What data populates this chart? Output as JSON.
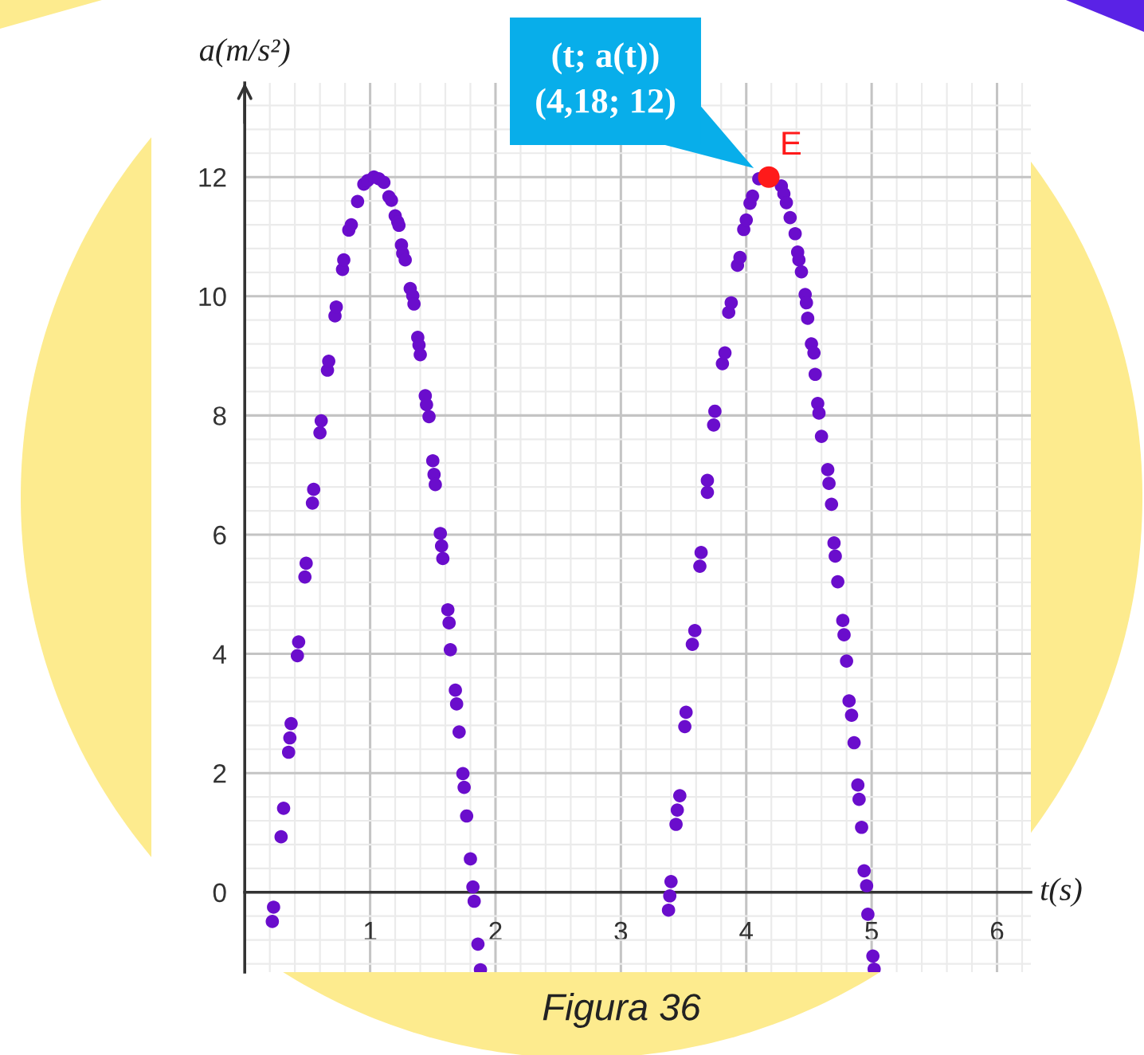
{
  "chart_data": {
    "type": "scatter",
    "xlabel": "t(s)",
    "ylabel": "a(m/s²)",
    "marker": "circle",
    "grid": true,
    "xlim": [
      0,
      6.27
    ],
    "ylim": [
      -1.34,
      13.58
    ],
    "xticks": [
      1,
      2,
      3,
      4,
      5,
      6
    ],
    "yticks": [
      0,
      2,
      4,
      6,
      8,
      10,
      12
    ],
    "series": [
      {
        "color": "#6a0dcc",
        "x": [
          0.23,
          0.22,
          0.29,
          0.31,
          0.35,
          0.36,
          0.37,
          0.42,
          0.43,
          0.48,
          0.49,
          0.54,
          0.55,
          0.6,
          0.61,
          0.66,
          0.67,
          0.72,
          0.73,
          0.78,
          0.79,
          0.83,
          0.85,
          0.9,
          0.95,
          0.98,
          1.03,
          1.07,
          1.11,
          1.15,
          1.17,
          1.2,
          1.22,
          1.23,
          1.25,
          1.26,
          1.28,
          1.32,
          1.34,
          1.35,
          1.38,
          1.39,
          1.4,
          1.44,
          1.45,
          1.47,
          1.5,
          1.51,
          1.52,
          1.56,
          1.57,
          1.58,
          1.62,
          1.63,
          1.64,
          1.68,
          1.69,
          1.71,
          1.74,
          1.75,
          1.77,
          1.8,
          1.82,
          1.83,
          1.86,
          1.88,
          3.38,
          3.39,
          3.4,
          3.44,
          3.45,
          3.47,
          3.51,
          3.52,
          3.57,
          3.59,
          3.63,
          3.64,
          3.69,
          3.69,
          3.74,
          3.75,
          3.81,
          3.83,
          3.86,
          3.88,
          3.93,
          3.95,
          3.98,
          4.0,
          4.03,
          4.05,
          4.1,
          4.28,
          4.3,
          4.32,
          4.35,
          4.39,
          4.41,
          4.42,
          4.44,
          4.47,
          4.48,
          4.49,
          4.52,
          4.54,
          4.55,
          4.57,
          4.58,
          4.6,
          4.65,
          4.66,
          4.68,
          4.7,
          4.71,
          4.73,
          4.77,
          4.78,
          4.8,
          4.82,
          4.84,
          4.86,
          4.89,
          4.9,
          4.92,
          4.94,
          4.96,
          4.97,
          5.01,
          5.02
        ],
        "values": [
          -0.25,
          -0.49,
          0.93,
          1.41,
          2.35,
          2.59,
          2.83,
          3.97,
          4.2,
          5.29,
          5.52,
          6.53,
          6.76,
          7.71,
          7.91,
          8.76,
          8.91,
          9.67,
          9.82,
          10.45,
          10.61,
          11.11,
          11.2,
          11.59,
          11.88,
          11.94,
          12.0,
          11.97,
          11.91,
          11.67,
          11.61,
          11.35,
          11.25,
          11.19,
          10.86,
          10.72,
          10.61,
          10.13,
          10.01,
          9.87,
          9.31,
          9.18,
          9.02,
          8.33,
          8.18,
          7.98,
          7.24,
          7.01,
          6.84,
          6.02,
          5.81,
          5.6,
          4.74,
          4.52,
          4.07,
          3.39,
          3.16,
          2.69,
          1.99,
          1.76,
          1.28,
          0.56,
          0.09,
          -0.15,
          -0.87,
          -1.3,
          -0.3,
          -0.06,
          0.18,
          1.14,
          1.38,
          1.62,
          2.78,
          3.02,
          4.16,
          4.39,
          5.47,
          5.7,
          6.71,
          6.91,
          7.84,
          8.07,
          8.87,
          9.05,
          9.73,
          9.89,
          10.52,
          10.65,
          11.12,
          11.28,
          11.56,
          11.68,
          11.97,
          11.85,
          11.72,
          11.57,
          11.32,
          11.05,
          10.74,
          10.61,
          10.41,
          10.03,
          9.89,
          9.63,
          9.2,
          9.05,
          8.69,
          8.2,
          8.04,
          7.65,
          7.09,
          6.86,
          6.51,
          5.86,
          5.64,
          5.21,
          4.56,
          4.32,
          3.88,
          3.21,
          2.97,
          2.51,
          1.8,
          1.56,
          1.09,
          0.36,
          0.11,
          -0.37,
          -1.07,
          -1.29
        ]
      },
      {
        "name": "E",
        "color": "#ff1a1a",
        "x": [
          4.18
        ],
        "values": [
          12
        ]
      }
    ],
    "annotations": [
      "(t; a(t))\n(4,18; 12)",
      "Figura 36"
    ]
  }
}
